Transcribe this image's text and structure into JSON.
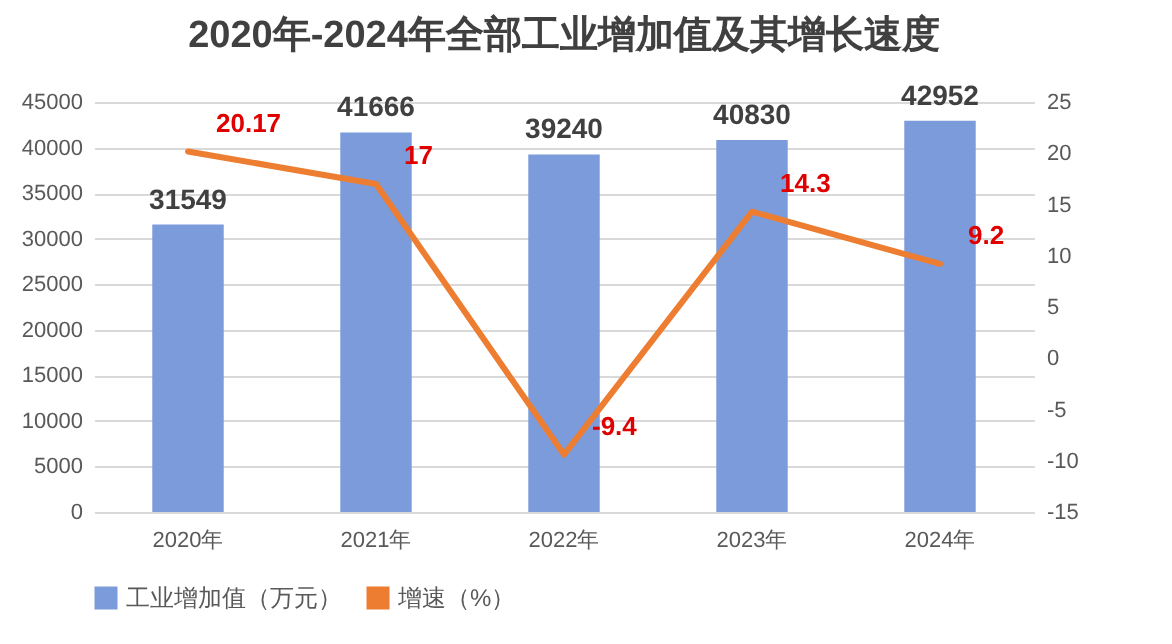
{
  "chart_data": {
    "type": "bar",
    "title": "2020年-2024年全部工业增加值及其增长速度",
    "categories": [
      "2020年",
      "2021年",
      "2022年",
      "2023年",
      "2024年"
    ],
    "series": [
      {
        "name": "工业增加值（万元）",
        "color": "#7b9bdb",
        "values": [
          31549,
          41666,
          39240,
          40830,
          42952
        ]
      },
      {
        "name": "增速（%）",
        "type": "line",
        "axis": "y2",
        "color": "#ed7d31",
        "values": [
          20.17,
          17,
          -9.4,
          14.3,
          9.2
        ]
      }
    ],
    "ylim": [
      0,
      45000
    ],
    "yticks": [
      0,
      5000,
      10000,
      15000,
      20000,
      25000,
      30000,
      35000,
      40000,
      45000
    ],
    "y2lim": [
      -15,
      25
    ],
    "y2ticks": [
      -15,
      -10,
      -5,
      0,
      5,
      10,
      15,
      20,
      25
    ],
    "grid": "y",
    "legend": "bottom",
    "data_labels": true,
    "marker": "none"
  }
}
